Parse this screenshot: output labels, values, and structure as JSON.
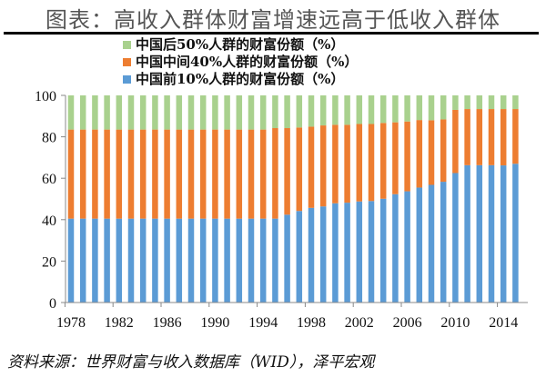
{
  "title": "图表：高收入群体财富增速远高于低收入群体",
  "source": "资料来源：世界财富与收入数据库（WID），泽平宏观",
  "chart_data": {
    "type": "bar",
    "stacked": true,
    "title": "图表：高收入群体财富增速远高于低收入群体",
    "xlabel": "",
    "ylabel": "",
    "ylim": [
      0,
      100
    ],
    "yticks": [
      0,
      20,
      40,
      60,
      80,
      100
    ],
    "xtick_labels": [
      "1978",
      "1982",
      "1986",
      "1990",
      "1994",
      "1998",
      "2002",
      "2006",
      "2010",
      "2014"
    ],
    "grid": false,
    "legend_position": "top",
    "categories": [
      "1978",
      "1979",
      "1980",
      "1981",
      "1982",
      "1983",
      "1984",
      "1985",
      "1986",
      "1987",
      "1988",
      "1989",
      "1990",
      "1991",
      "1992",
      "1993",
      "1994",
      "1995",
      "1996",
      "1997",
      "1998",
      "1999",
      "2000",
      "2001",
      "2002",
      "2003",
      "2004",
      "2005",
      "2006",
      "2007",
      "2008",
      "2009",
      "2010",
      "2011",
      "2012",
      "2013",
      "2014",
      "2015"
    ],
    "series": [
      {
        "name": "中国前10%人群的财富份额（%）",
        "color": "#5b9bd5",
        "values": [
          40.5,
          40.5,
          40.5,
          40.5,
          40.5,
          40.5,
          40.5,
          40.5,
          40.5,
          40.5,
          40.5,
          40.5,
          40.5,
          40.5,
          40.5,
          40.5,
          40.5,
          40.5,
          42.4,
          44.2,
          45.7,
          46.4,
          47.9,
          48.2,
          48.8,
          49.0,
          50.1,
          52.3,
          53.7,
          55.5,
          56.8,
          58.3,
          62.5,
          66.3,
          66.3,
          66.3,
          66.2,
          67.0
        ]
      },
      {
        "name": "中国中间40%人群的财富份额（%）",
        "color": "#ed7d31",
        "values": [
          43.0,
          43.0,
          43.0,
          43.0,
          43.0,
          43.0,
          43.0,
          43.0,
          43.0,
          43.0,
          43.0,
          43.0,
          43.0,
          43.0,
          43.0,
          43.0,
          43.0,
          43.7,
          41.8,
          40.3,
          39.2,
          39.1,
          37.9,
          37.6,
          37.4,
          37.2,
          36.6,
          34.7,
          33.7,
          32.6,
          31.2,
          30.1,
          30.5,
          27.1,
          27.1,
          27.1,
          27.2,
          26.4
        ]
      },
      {
        "name": "中国后50%人群的财富份额（%）",
        "color": "#a9d18e",
        "values": [
          16.5,
          16.5,
          16.5,
          16.5,
          16.5,
          16.5,
          16.5,
          16.5,
          16.5,
          16.5,
          16.5,
          16.5,
          16.5,
          16.5,
          16.5,
          16.5,
          16.5,
          15.8,
          15.8,
          15.5,
          15.1,
          14.5,
          14.2,
          14.2,
          13.8,
          13.8,
          13.3,
          13.0,
          12.6,
          11.9,
          12.0,
          11.6,
          7.0,
          6.6,
          6.6,
          6.6,
          6.6,
          6.6
        ]
      }
    ],
    "legend_order": [
      2,
      1,
      0
    ]
  }
}
